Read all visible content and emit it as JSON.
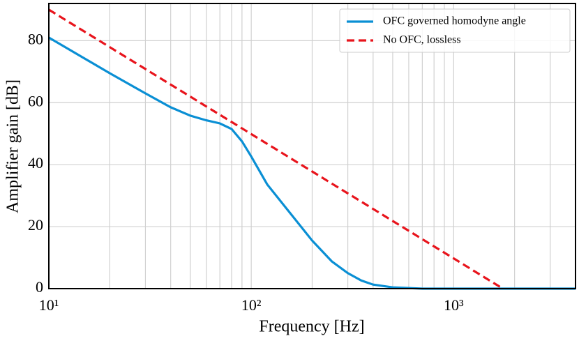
{
  "chart_data": {
    "type": "line",
    "x_label": "Frequency [Hz]",
    "y_label": "Amplifier gain [dB]",
    "xscale": "log",
    "xlim": [
      10,
      4000
    ],
    "ylim": [
      0,
      92
    ],
    "xticks": [
      {
        "value": 10,
        "label": "10¹"
      },
      {
        "value": 100,
        "label": "10²"
      },
      {
        "value": 1000,
        "label": "10³"
      }
    ],
    "x_minor_ticks": [
      20,
      30,
      40,
      50,
      60,
      70,
      80,
      90,
      200,
      300,
      400,
      500,
      600,
      700,
      800,
      900,
      2000,
      3000,
      4000
    ],
    "yticks": [
      0,
      20,
      40,
      60,
      80
    ],
    "grid": true,
    "legend": "upper right",
    "series": [
      {
        "name": "OFC governed homodyne angle",
        "color": "#0a8fd4",
        "dash": false,
        "x": [
          10,
          20,
          30,
          40,
          50,
          60,
          70,
          80,
          90,
          100,
          120,
          150,
          200,
          250,
          300,
          350,
          400,
          500,
          700,
          1000,
          2000,
          4000
        ],
        "values": [
          81,
          69.5,
          63,
          58.5,
          55.8,
          54.3,
          53.3,
          51.5,
          47.5,
          42.6,
          33.6,
          25.7,
          15.5,
          8.8,
          5,
          2.6,
          1.3,
          0.4,
          0,
          0,
          0,
          0
        ]
      },
      {
        "name": "No OFC, lossless",
        "color": "#e8141c",
        "dash": true,
        "x": [
          10,
          1750
        ],
        "values": [
          90,
          0
        ]
      }
    ]
  }
}
